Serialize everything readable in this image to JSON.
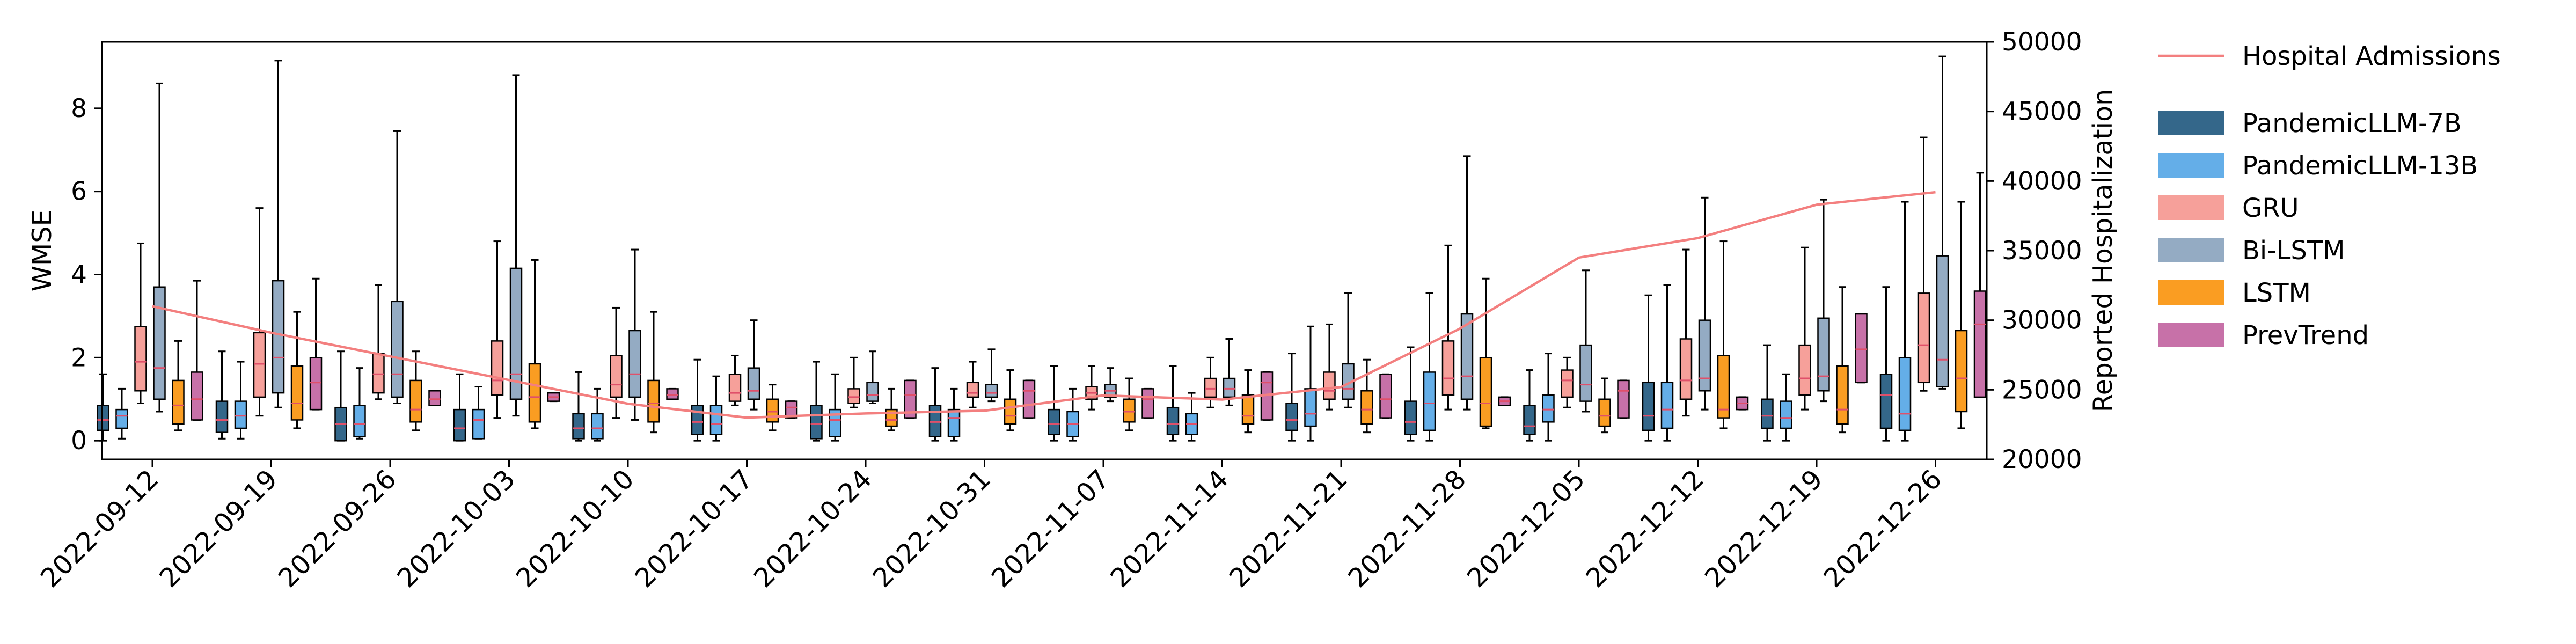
{
  "colors": {
    "hospital_line": "#f37f7f",
    "PandemicLLM-7B": "#34678a",
    "PandemicLLM-13B": "#64aee8",
    "GRU": "#f6a09a",
    "Bi-LSTM": "#94abc3",
    "LSTM": "#fa9d22",
    "PrevTrend": "#c771a8",
    "median": "#e0506a",
    "whisker": "#000000"
  },
  "chart_data": {
    "type": "box",
    "xlabel": "",
    "ylabel": "WMSE",
    "y2label": "Reported Hospitalization",
    "ylim": [
      -0.45,
      9.6
    ],
    "yticks": [
      0,
      2,
      4,
      6,
      8
    ],
    "y2lim": [
      20000,
      50000
    ],
    "y2ticks": [
      20000,
      25000,
      30000,
      35000,
      40000,
      45000,
      50000
    ],
    "grid": false,
    "legend_position": "outside-right",
    "categories": [
      "2022-09-12",
      "2022-09-19",
      "2022-09-26",
      "2022-10-03",
      "2022-10-10",
      "2022-10-17",
      "2022-10-24",
      "2022-10-31",
      "2022-11-07",
      "2022-11-14",
      "2022-11-21",
      "2022-11-28",
      "2022-12-05",
      "2022-12-12",
      "2022-12-19",
      "2022-12-26"
    ],
    "line_series": {
      "name": "Hospital Admissions",
      "axis": "right",
      "x": [
        "2022-09-12",
        "2022-09-19",
        "2022-09-26",
        "2022-10-03",
        "2022-10-10",
        "2022-10-17",
        "2022-10-24",
        "2022-10-31",
        "2022-11-07",
        "2022-11-14",
        "2022-11-21",
        "2022-11-28",
        "2022-12-05",
        "2022-12-12",
        "2022-12-19",
        "2022-12-26"
      ],
      "values": [
        31000,
        29100,
        27400,
        25700,
        24000,
        23000,
        23300,
        23500,
        24600,
        24300,
        25200,
        29400,
        34500,
        35900,
        38300,
        39200
      ]
    },
    "box_series": [
      {
        "name": "PandemicLLM-7B",
        "boxes": [
          [
            0.0,
            0.25,
            0.5,
            0.85,
            1.6
          ],
          [
            0.05,
            0.2,
            0.5,
            0.95,
            2.15
          ],
          [
            0.0,
            0.0,
            0.4,
            0.8,
            2.15
          ],
          [
            0.0,
            0.0,
            0.3,
            0.75,
            1.6
          ],
          [
            0.0,
            0.05,
            0.3,
            0.65,
            1.65
          ],
          [
            0.0,
            0.15,
            0.45,
            0.85,
            1.95
          ],
          [
            0.0,
            0.05,
            0.4,
            0.85,
            1.9
          ],
          [
            0.0,
            0.1,
            0.45,
            0.85,
            1.75
          ],
          [
            0.0,
            0.15,
            0.4,
            0.75,
            1.8
          ],
          [
            0.0,
            0.15,
            0.4,
            0.8,
            1.8
          ],
          [
            0.0,
            0.25,
            0.5,
            0.9,
            2.1
          ],
          [
            0.0,
            0.15,
            0.45,
            0.95,
            2.25
          ],
          [
            0.0,
            0.15,
            0.35,
            0.85,
            1.7
          ],
          [
            0.0,
            0.25,
            0.6,
            1.4,
            3.5
          ],
          [
            0.0,
            0.3,
            0.6,
            1.0,
            2.3
          ],
          [
            0.0,
            0.3,
            1.1,
            1.6,
            3.7
          ]
        ]
      },
      {
        "name": "PandemicLLM-13B",
        "boxes": [
          [
            0.05,
            0.3,
            0.6,
            0.75,
            1.25
          ],
          [
            0.05,
            0.3,
            0.6,
            0.95,
            1.9
          ],
          [
            0.05,
            0.1,
            0.4,
            0.85,
            1.75
          ],
          [
            0.05,
            0.05,
            0.5,
            0.75,
            1.3
          ],
          [
            0.0,
            0.05,
            0.3,
            0.65,
            1.25
          ],
          [
            0.0,
            0.15,
            0.4,
            0.85,
            1.55
          ],
          [
            0.0,
            0.1,
            0.5,
            0.75,
            1.6
          ],
          [
            0.0,
            0.1,
            0.55,
            0.75,
            1.25
          ],
          [
            0.0,
            0.1,
            0.4,
            0.7,
            1.25
          ],
          [
            0.0,
            0.15,
            0.4,
            0.65,
            1.15
          ],
          [
            0.0,
            0.35,
            0.65,
            1.25,
            2.75
          ],
          [
            0.0,
            0.25,
            0.9,
            1.65,
            3.55
          ],
          [
            0.0,
            0.45,
            0.75,
            1.1,
            2.1
          ],
          [
            0.0,
            0.3,
            0.75,
            1.4,
            3.75
          ],
          [
            0.0,
            0.3,
            0.55,
            0.95,
            1.6
          ],
          [
            0.0,
            0.25,
            0.65,
            2.0,
            5.75
          ]
        ]
      },
      {
        "name": "GRU",
        "boxes": [
          [
            0.9,
            1.2,
            1.9,
            2.75,
            4.75
          ],
          [
            0.6,
            1.05,
            1.85,
            2.6,
            5.6
          ],
          [
            1.0,
            1.15,
            1.6,
            2.1,
            3.75
          ],
          [
            0.55,
            1.1,
            1.45,
            2.4,
            4.8
          ],
          [
            0.55,
            1.05,
            1.35,
            2.05,
            3.2
          ],
          [
            0.85,
            0.95,
            1.15,
            1.6,
            2.05
          ],
          [
            0.8,
            0.9,
            1.05,
            1.25,
            2.0
          ],
          [
            0.8,
            1.05,
            1.15,
            1.4,
            1.9
          ],
          [
            0.75,
            1.0,
            1.15,
            1.3,
            1.8
          ],
          [
            0.8,
            1.05,
            1.25,
            1.5,
            2.0
          ],
          [
            0.75,
            1.0,
            1.2,
            1.65,
            2.8
          ],
          [
            0.75,
            1.1,
            1.5,
            2.4,
            4.7
          ],
          [
            0.8,
            1.05,
            1.45,
            1.7,
            2.0
          ],
          [
            0.6,
            1.0,
            1.45,
            2.45,
            4.6
          ],
          [
            0.75,
            1.1,
            1.5,
            2.3,
            4.65
          ],
          [
            1.2,
            1.4,
            2.3,
            3.55,
            7.3
          ]
        ]
      },
      {
        "name": "Bi-LSTM",
        "boxes": [
          [
            0.7,
            1.0,
            1.75,
            3.7,
            8.6
          ],
          [
            0.8,
            1.15,
            2.0,
            3.85,
            9.15
          ],
          [
            0.9,
            1.05,
            1.6,
            3.35,
            7.45
          ],
          [
            0.6,
            1.0,
            1.6,
            4.15,
            8.8
          ],
          [
            0.5,
            1.05,
            1.6,
            2.65,
            4.6
          ],
          [
            0.75,
            1.0,
            1.2,
            1.75,
            2.9
          ],
          [
            0.9,
            0.95,
            1.1,
            1.4,
            2.15
          ],
          [
            0.95,
            1.05,
            1.15,
            1.35,
            2.2
          ],
          [
            0.95,
            1.05,
            1.2,
            1.35,
            1.75
          ],
          [
            0.85,
            1.05,
            1.25,
            1.5,
            2.45
          ],
          [
            0.8,
            1.0,
            1.25,
            1.85,
            3.55
          ],
          [
            0.75,
            1.0,
            1.55,
            3.05,
            6.85
          ],
          [
            0.7,
            0.95,
            1.35,
            2.3,
            4.1
          ],
          [
            0.75,
            1.2,
            1.5,
            2.9,
            5.85
          ],
          [
            0.95,
            1.2,
            1.55,
            2.95,
            5.8
          ],
          [
            1.25,
            1.3,
            1.95,
            4.45,
            9.25
          ]
        ]
      },
      {
        "name": "LSTM",
        "boxes": [
          [
            0.25,
            0.4,
            0.85,
            1.45,
            2.4
          ],
          [
            0.3,
            0.5,
            0.9,
            1.8,
            3.1
          ],
          [
            0.25,
            0.45,
            0.75,
            1.45,
            2.15
          ],
          [
            0.3,
            0.45,
            1.05,
            1.85,
            4.35
          ],
          [
            0.2,
            0.45,
            0.9,
            1.45,
            3.1
          ],
          [
            0.25,
            0.45,
            0.7,
            1.0,
            1.35
          ],
          [
            0.25,
            0.35,
            0.5,
            0.75,
            1.25
          ],
          [
            0.25,
            0.4,
            0.6,
            1.0,
            1.7
          ],
          [
            0.25,
            0.45,
            0.7,
            1.0,
            1.5
          ],
          [
            0.2,
            0.4,
            0.6,
            1.1,
            1.7
          ],
          [
            0.2,
            0.4,
            0.75,
            1.2,
            1.95
          ],
          [
            0.3,
            0.35,
            0.9,
            2.0,
            3.9
          ],
          [
            0.2,
            0.35,
            0.6,
            1.0,
            1.5
          ],
          [
            0.3,
            0.55,
            0.75,
            2.05,
            4.8
          ],
          [
            0.2,
            0.4,
            0.75,
            1.8,
            3.7
          ],
          [
            0.3,
            0.7,
            1.5,
            2.65,
            5.75
          ]
        ]
      },
      {
        "name": "PrevTrend",
        "boxes": [
          [
            0.5,
            0.5,
            1.0,
            1.65,
            3.85
          ],
          [
            0.75,
            0.75,
            1.4,
            2.0,
            3.9
          ],
          [
            0.85,
            0.85,
            1.0,
            1.2,
            1.2
          ],
          [
            0.95,
            0.95,
            1.05,
            1.15,
            1.15
          ],
          [
            1.0,
            1.0,
            1.1,
            1.25,
            1.25
          ],
          [
            0.55,
            0.55,
            0.8,
            0.95,
            0.95
          ],
          [
            0.55,
            0.55,
            1.1,
            1.45,
            1.45
          ],
          [
            0.55,
            0.55,
            1.2,
            1.45,
            1.45
          ],
          [
            0.55,
            0.55,
            1.0,
            1.25,
            1.25
          ],
          [
            0.5,
            0.5,
            1.4,
            1.65,
            1.65
          ],
          [
            0.55,
            0.55,
            1.0,
            1.6,
            1.6
          ],
          [
            0.85,
            0.85,
            0.95,
            1.05,
            1.05
          ],
          [
            0.55,
            0.55,
            1.2,
            1.45,
            1.45
          ],
          [
            0.75,
            0.75,
            0.9,
            1.05,
            1.05
          ],
          [
            1.4,
            1.4,
            2.2,
            3.05,
            3.05
          ],
          [
            1.05,
            1.05,
            2.8,
            3.6,
            6.45
          ]
        ]
      }
    ]
  }
}
